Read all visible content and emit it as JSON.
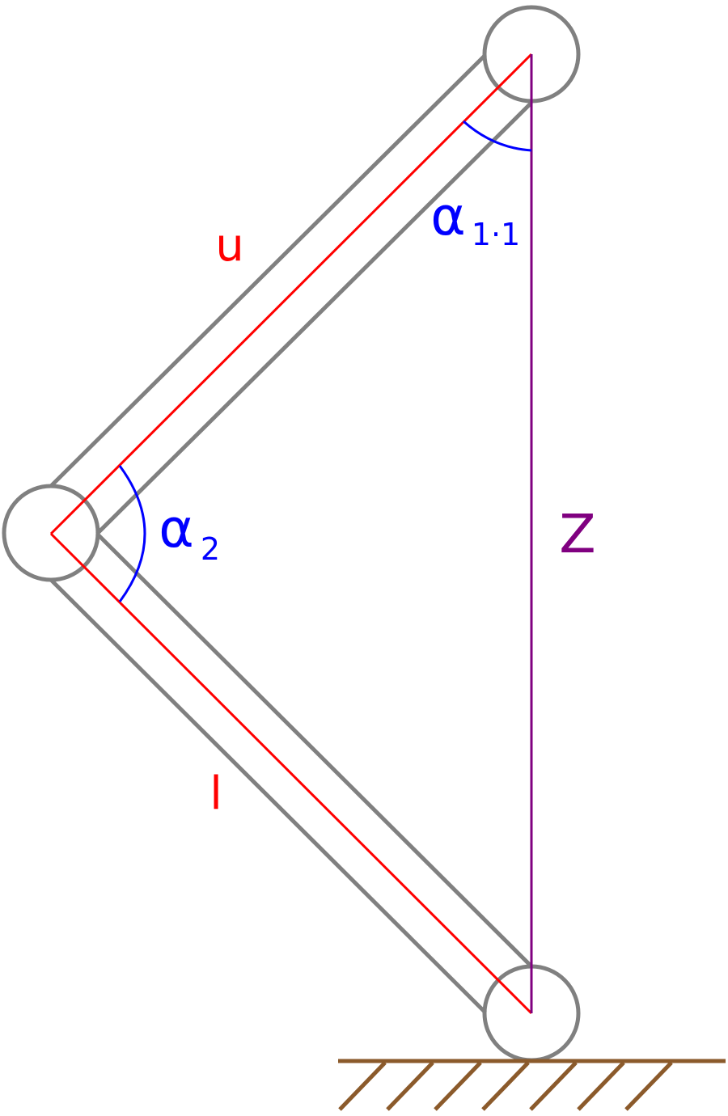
{
  "labels": {
    "upper": "u",
    "lower": "l",
    "reach": "Z",
    "angle_top_symbol": "α",
    "angle_top_subscript": "1·1",
    "angle_mid_symbol": "α",
    "angle_mid_subscript": "2"
  },
  "colors": {
    "link_outline": "#808080",
    "link_axis": "#ff0000",
    "reach_line": "#800080",
    "angle_arc": "#0000ff",
    "ground": "#8b5a2b",
    "background": "#ffffff"
  },
  "icons": {
    "joint": "circle-joint-icon",
    "ground": "hatched-ground-icon"
  }
}
